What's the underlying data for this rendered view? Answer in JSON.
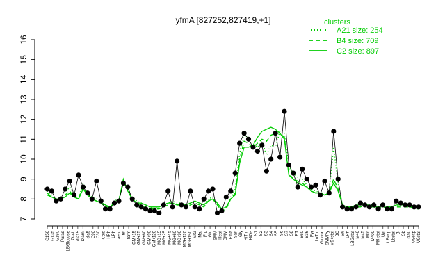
{
  "chart_data": {
    "type": "line",
    "title": "yfmA [827252,827419,+1]",
    "xlabel": "",
    "ylabel": "",
    "ylim": [
      7,
      16
    ],
    "yticks": [
      7,
      8,
      9,
      10,
      11,
      12,
      13,
      14,
      15,
      16
    ],
    "grid": false,
    "legend_position": "top-right",
    "legend_title": "clusters",
    "colors": {
      "series": "#00cc00",
      "points": "#000000",
      "axes": "#000000"
    },
    "categories": [
      "G150",
      "G135",
      "G180",
      "M/G",
      "Paraq",
      "LBGlucose",
      "Oxctl",
      "dia15",
      "Diami",
      "dia5",
      "C90",
      "C30",
      "Cold",
      "HPh",
      "LPh",
      "aero",
      "nit",
      "ferm",
      "GM+15",
      "GM+25",
      "GM+60",
      "GM+90",
      "GM+120",
      "MG+15",
      "MG+25",
      "MG+45",
      "MG+60",
      "MG+90",
      "MG+120",
      "MG+150",
      "Mal",
      "Fru",
      "Glu",
      "SMM",
      "Heat",
      "BMM",
      "Etha",
      "Salt",
      "H2O2",
      "Gly",
      "HiTm",
      "HiOs",
      "S1",
      "S2",
      "S3",
      "S4",
      "S5",
      "S6",
      "S7",
      "S8",
      "BT",
      "B60",
      "B36",
      "Pyr",
      "LoTm",
      "UNK1",
      "UNK2",
      "Glucon",
      "UNK3",
      "UNK4",
      "UNK5",
      "UNK6",
      "UNK7",
      "UNK8",
      "UNK9",
      "BC",
      "Sw",
      "LPh2",
      "LBGstat",
      "M9stat",
      "Mtd",
      "M40",
      "M400",
      "Uvt",
      "LBexp",
      "T1",
      "Lbstat",
      "M9",
      "Bl",
      "Sb",
      "SDL",
      "dia0",
      "M9exp",
      "end"
    ],
    "x_tick_labels": [
      "G150",
      "G135",
      "G180",
      "Paraq",
      "LBGlucose",
      "Oxctl",
      "dia15",
      "Diami",
      "dia5",
      "C90",
      "C30",
      "Cold",
      "HPh",
      "LPh",
      "aero",
      "nit",
      "ferm",
      "GM+15",
      "GM+25",
      "GM+60",
      "GM+90",
      "GM+120",
      "MG+15",
      "MG+25",
      "MG+45",
      "MG+60",
      "MG+90",
      "MG+120",
      "MG+150",
      "M/G",
      "Mal",
      "Fru",
      "Glu",
      "SMM",
      "Heat",
      "BMM",
      "Etha",
      "Salt",
      "Gly",
      "HiTm",
      "HiOs",
      "S1",
      "S2",
      "S3",
      "S4",
      "S5",
      "S6",
      "S7",
      "S8",
      "BT",
      "B60",
      "B36",
      "Pyr",
      "LoTm",
      "Glucon",
      "SMMPy",
      "M9+stat",
      "BC",
      "Sw",
      "LPh",
      "LBGstat",
      "M40",
      "M45",
      "Mtd",
      "M400",
      "M9-stat",
      "Uvt",
      "LBexp",
      "Lbstat",
      "Bl",
      "Sb",
      "dia0",
      "M9exp",
      "M9stat"
    ],
    "series": [
      {
        "name": "A21 size: 254",
        "style": "dotted",
        "values": [
          8.4,
          8.2,
          8.0,
          8.1,
          8.3,
          8.6,
          8.2,
          8.0,
          8.8,
          8.3,
          8.1,
          8.0,
          7.9,
          7.7,
          7.6,
          7.9,
          8.0,
          8.8,
          8.5,
          8.1,
          7.9,
          7.8,
          7.7,
          7.6,
          7.5,
          7.6,
          7.7,
          7.8,
          7.9,
          7.8,
          7.8,
          7.7,
          7.8,
          7.9,
          7.8,
          7.7,
          8.0,
          8.1,
          7.8,
          7.5,
          7.6,
          8.1,
          8.5,
          10.3,
          11.3,
          11.0,
          10.8,
          10.6,
          10.9,
          10.2,
          10.7,
          10.6,
          11.4,
          11.3,
          9.6,
          9.3,
          9.1,
          9.0,
          8.7,
          8.5,
          8.4,
          8.3,
          8.3,
          8.4,
          10.6,
          8.8,
          7.7,
          7.6,
          7.5,
          7.7,
          7.7,
          7.8,
          7.7,
          7.7,
          7.6,
          7.7,
          7.6,
          7.6,
          7.7,
          7.7,
          7.7,
          7.7,
          7.6,
          7.6
        ]
      },
      {
        "name": "B4 size: 709",
        "style": "dashed",
        "values": [
          8.3,
          8.1,
          8.0,
          8.0,
          8.2,
          8.4,
          8.1,
          8.0,
          8.6,
          8.2,
          8.0,
          7.9,
          7.8,
          7.6,
          7.6,
          7.8,
          7.9,
          8.9,
          8.4,
          8.0,
          7.8,
          7.7,
          7.6,
          7.5,
          7.5,
          7.5,
          7.6,
          7.7,
          7.8,
          7.7,
          7.7,
          7.6,
          7.7,
          7.8,
          7.7,
          7.6,
          7.9,
          8.0,
          7.7,
          7.4,
          7.5,
          8.0,
          8.3,
          10.0,
          10.9,
          10.8,
          10.6,
          10.8,
          11.0,
          10.9,
          11.2,
          11.3,
          11.3,
          11.1,
          9.3,
          9.0,
          8.9,
          8.8,
          8.6,
          8.4,
          8.3,
          8.2,
          8.2,
          8.3,
          9.0,
          8.5,
          7.7,
          7.6,
          7.5,
          7.6,
          7.6,
          7.7,
          7.6,
          7.6,
          7.5,
          7.6,
          7.5,
          7.5,
          7.6,
          7.6,
          7.6,
          7.6,
          7.5,
          7.5
        ]
      },
      {
        "name": "C2 size: 897",
        "style": "solid",
        "values": [
          8.2,
          8.1,
          8.0,
          8.0,
          8.1,
          8.3,
          8.1,
          8.0,
          8.5,
          8.2,
          8.0,
          7.9,
          7.8,
          7.7,
          7.6,
          7.8,
          7.9,
          9.0,
          8.4,
          8.0,
          7.8,
          7.8,
          7.7,
          7.6,
          7.6,
          7.6,
          7.7,
          7.8,
          7.8,
          7.7,
          7.8,
          7.7,
          7.8,
          7.9,
          7.8,
          7.7,
          7.9,
          8.0,
          7.8,
          7.5,
          7.6,
          8.0,
          8.2,
          9.8,
          10.6,
          10.6,
          10.7,
          11.1,
          11.4,
          11.5,
          11.6,
          11.5,
          11.3,
          11.0,
          9.2,
          9.0,
          8.8,
          8.7,
          8.6,
          8.4,
          8.3,
          8.3,
          8.2,
          8.3,
          8.8,
          8.4,
          7.7,
          7.6,
          7.6,
          7.7,
          7.7,
          7.7,
          7.7,
          7.6,
          7.6,
          7.7,
          7.6,
          7.6,
          7.7,
          7.7,
          7.7,
          7.6,
          7.6,
          7.6
        ]
      }
    ],
    "points": {
      "name": "",
      "values": [
        8.5,
        8.4,
        7.9,
        8.0,
        8.5,
        8.9,
        8.2,
        9.2,
        8.6,
        8.3,
        8.0,
        8.9,
        7.9,
        7.5,
        7.5,
        7.8,
        7.9,
        8.8,
        8.6,
        8.0,
        7.7,
        7.6,
        7.5,
        7.4,
        7.4,
        7.3,
        7.7,
        8.4,
        7.6,
        9.9,
        7.7,
        7.6,
        8.4,
        7.6,
        7.5,
        8.0,
        8.4,
        8.5,
        7.3,
        7.4,
        8.1,
        8.4,
        9.3,
        10.8,
        11.3,
        11.0,
        10.6,
        10.4,
        10.7,
        9.4,
        10.0,
        11.3,
        10.1,
        12.4,
        9.7,
        9.3,
        8.6,
        9.5,
        9.0,
        8.6,
        8.7,
        8.2,
        8.9,
        8.3,
        11.4,
        9.0,
        7.6,
        7.5,
        7.5,
        7.6,
        7.8,
        7.7,
        7.6,
        7.7,
        7.5,
        7.7,
        7.5,
        7.5,
        7.9,
        7.8,
        7.7,
        7.7,
        7.6,
        7.6
      ]
    }
  }
}
